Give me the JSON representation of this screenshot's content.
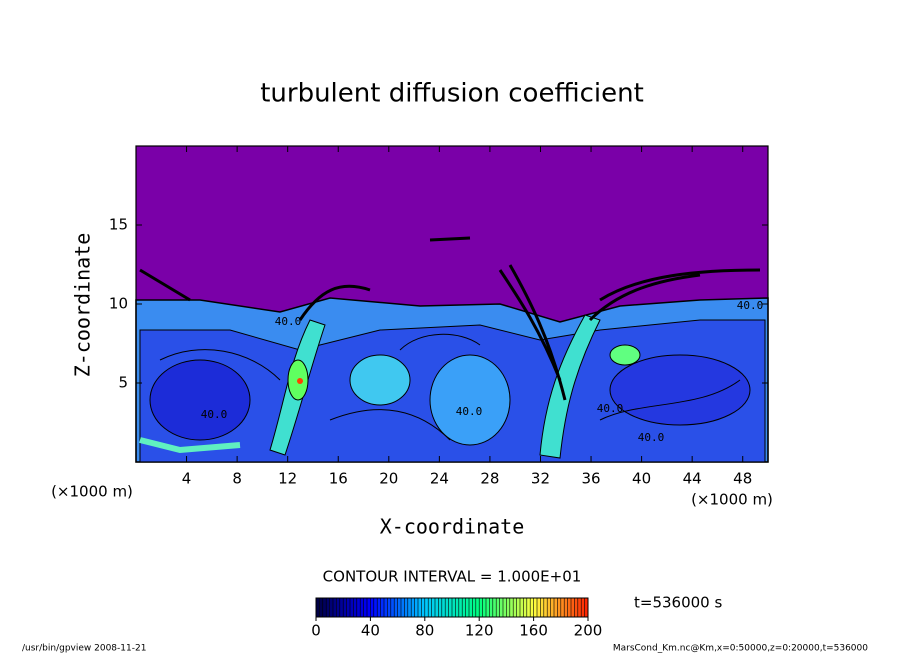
{
  "chart_data": {
    "type": "contour",
    "title": "turbulent diffusion coefficient",
    "x_label": "X-coordinate",
    "y_label": "Z-coordinate",
    "x_unit": "(×1000 m)",
    "y_unit": "(×1000 m)",
    "xlim": [
      0,
      50
    ],
    "xticks": [
      4,
      8,
      12,
      16,
      20,
      24,
      28,
      32,
      36,
      40,
      44,
      48
    ],
    "ylim": [
      0,
      20
    ],
    "yticks": [
      5,
      10,
      15
    ],
    "contour_labels": [
      "40.0",
      "40.0",
      "40.0",
      "40.0",
      "40.0",
      "40.0"
    ],
    "contour_interval_label": "CONTOUR INTERVAL = 1.000E+01",
    "time_label": "t=536000 s",
    "colorbar": {
      "lim": [
        0,
        200
      ],
      "ticks": [
        0,
        40,
        80,
        120,
        160,
        200
      ],
      "colors": [
        "#000040",
        "#0000ff",
        "#00c8ff",
        "#00ff80",
        "#ffff40",
        "#ff2000"
      ]
    },
    "footer_left": "/usr/bin/gpview   2008-11-21",
    "footer_right": "MarsCond_Km.nc@Km,x=0:50000,z=0:20000,t=536000"
  }
}
